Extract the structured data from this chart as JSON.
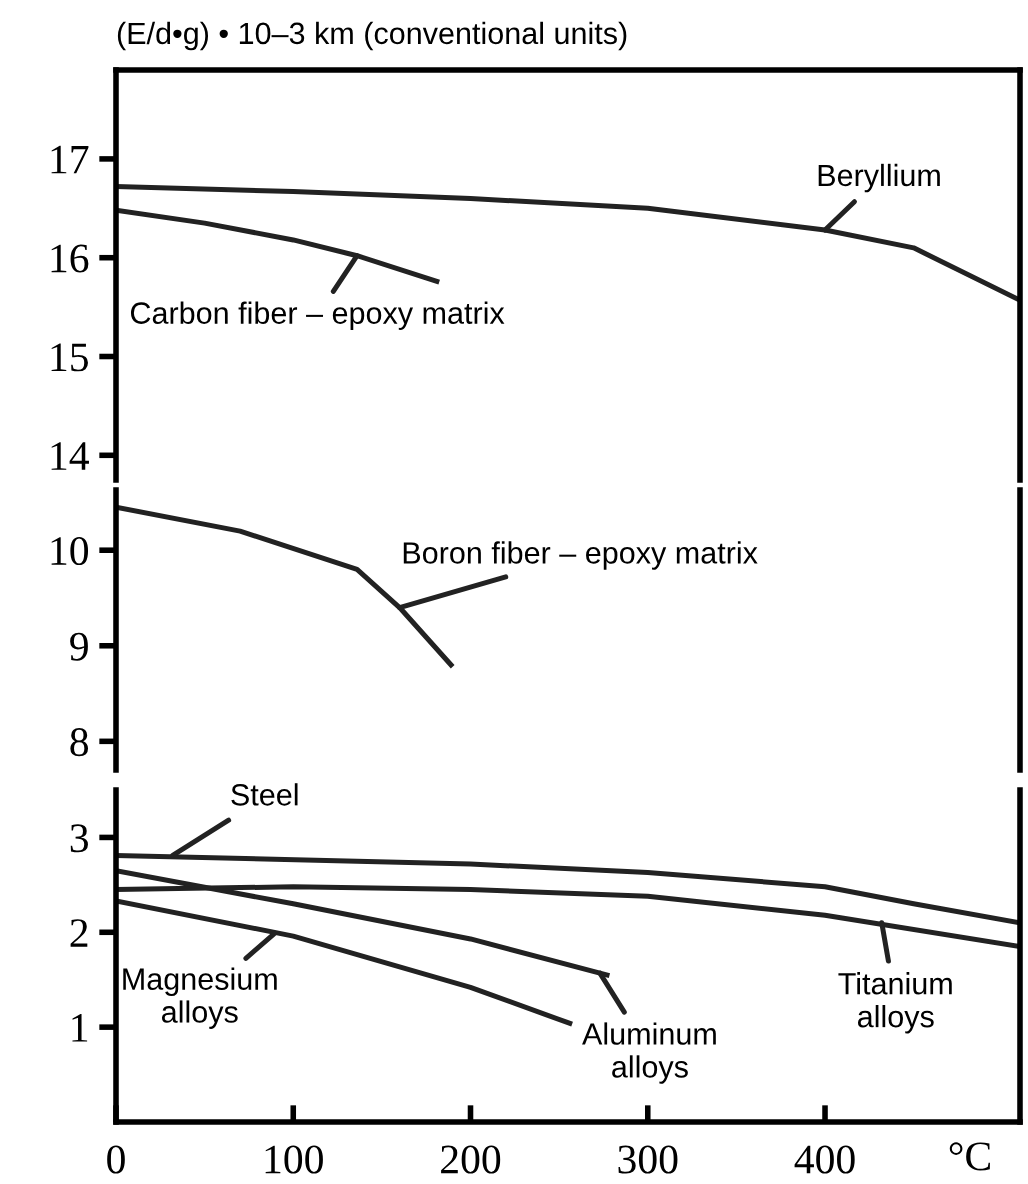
{
  "chart_data": [
    {
      "type": "line",
      "ylabel": "(E/d•g) • 10–3 km (conventional units)",
      "xlim": [
        0,
        510
      ],
      "ylim": [
        13.75,
        17.9
      ],
      "yticks": [
        14,
        15,
        16,
        17
      ],
      "tick_labels": "y",
      "line_style": "solid",
      "marker": "none",
      "grid": false,
      "legend": false,
      "series": [
        {
          "color": "#222222",
          "x": [
            0,
            100,
            200,
            300,
            400,
            450,
            510
          ],
          "values": [
            16.72,
            16.67,
            16.6,
            16.5,
            16.28,
            16.1,
            15.57
          ]
        },
        {
          "color": "#222222",
          "x": [
            0,
            50,
            100,
            136,
            181
          ],
          "values": [
            16.48,
            16.35,
            16.18,
            16.02,
            15.76
          ]
        }
      ],
      "annotations": [
        {
          "text": "Beryllium",
          "x": 400,
          "y": 16.28
        },
        {
          "text": "Carbon fiber – epoxy matrix",
          "x": 136,
          "y": 16.02
        }
      ]
    },
    {
      "type": "line",
      "xlim": [
        0,
        510
      ],
      "ylim": [
        7.7,
        10.63
      ],
      "yticks": [
        8,
        9,
        10
      ],
      "tick_labels": "y",
      "line_style": "solid",
      "marker": "none",
      "grid": false,
      "legend": false,
      "series": [
        {
          "color": "#222222",
          "x": [
            0,
            70,
            136,
            160,
            189
          ],
          "values": [
            10.45,
            10.2,
            9.8,
            9.4,
            8.8
          ]
        }
      ],
      "annotations": [
        {
          "text": "Boron fiber – epoxy matrix",
          "x": 160,
          "y": 9.4
        }
      ]
    },
    {
      "type": "line",
      "xlabel": "°C",
      "xlim": [
        0,
        510
      ],
      "ylim": [
        0,
        3.5
      ],
      "yticks": [
        1,
        2,
        3
      ],
      "xticks": [
        0,
        100,
        200,
        300,
        400
      ],
      "line_style": "solid",
      "marker": "none",
      "grid": false,
      "legend": false,
      "series": [
        {
          "color": "#222222",
          "x": [
            0,
            200,
            300,
            400,
            450,
            510
          ],
          "values": [
            2.81,
            2.72,
            2.63,
            2.48,
            2.3,
            2.1
          ]
        },
        {
          "color": "#222222",
          "x": [
            0,
            100,
            200,
            300,
            400,
            510
          ],
          "values": [
            2.45,
            2.48,
            2.45,
            2.38,
            2.18,
            1.85
          ]
        },
        {
          "color": "#222222",
          "x": [
            0,
            100,
            200,
            277
          ],
          "values": [
            2.65,
            2.3,
            1.93,
            1.55
          ]
        },
        {
          "color": "#222222",
          "x": [
            0,
            100,
            200,
            256
          ],
          "values": [
            2.33,
            1.96,
            1.42,
            1.04
          ]
        }
      ],
      "annotations": [
        {
          "text": "Steel",
          "x": 32,
          "y": 2.81
        },
        {
          "text": "Magnesium\nalloys",
          "x": 89,
          "y": 1.98
        },
        {
          "text": "Aluminum\nalloys",
          "x": 273,
          "y": 1.57
        },
        {
          "text": "Titanium\nalloys",
          "x": 432,
          "y": 2.1
        }
      ]
    }
  ]
}
